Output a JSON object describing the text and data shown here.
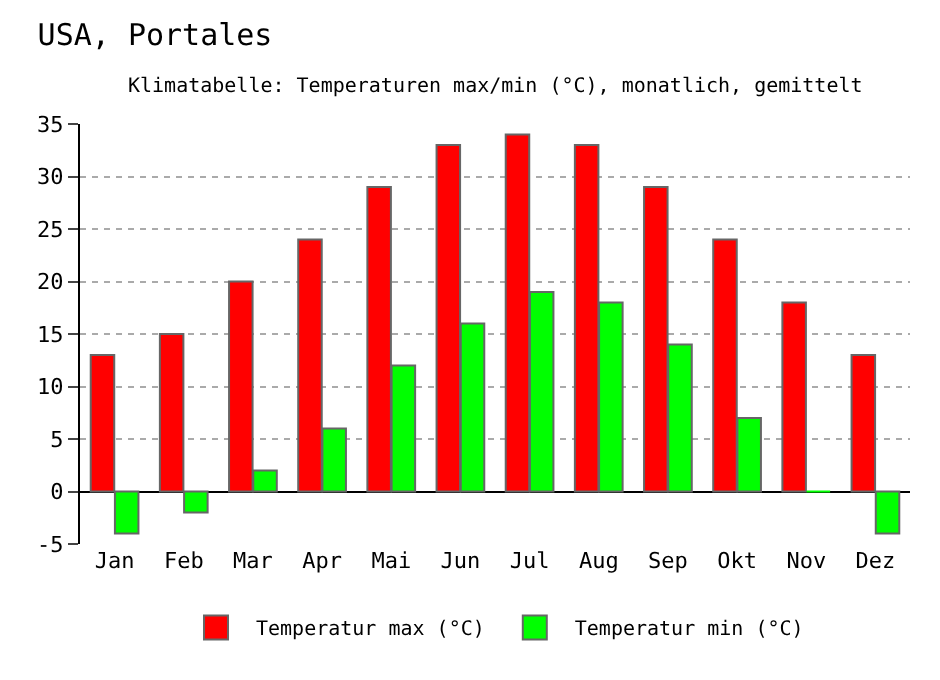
{
  "chart_data": {
    "type": "bar",
    "title": "USA, Portales",
    "subtitle": "Klimatabelle: Temperaturen max/min (°C), monatlich, gemittelt",
    "categories": [
      "Jan",
      "Feb",
      "Mar",
      "Apr",
      "Mai",
      "Jun",
      "Jul",
      "Aug",
      "Sep",
      "Okt",
      "Nov",
      "Dez"
    ],
    "series": [
      {
        "name": "Temperatur max (°C)",
        "color": "#ff0000",
        "values": [
          13,
          15,
          20,
          24,
          29,
          33,
          34,
          33,
          29,
          24,
          18,
          13
        ]
      },
      {
        "name": "Temperatur min (°C)",
        "color": "#00ff00",
        "values": [
          -4,
          -2,
          2,
          6,
          12,
          16,
          19,
          18,
          14,
          7,
          0,
          -4
        ]
      }
    ],
    "ylim": [
      -5,
      35
    ],
    "yticks": [
      -5,
      0,
      5,
      10,
      15,
      20,
      25,
      30,
      35
    ],
    "grid": "y",
    "legend": "bottom"
  }
}
